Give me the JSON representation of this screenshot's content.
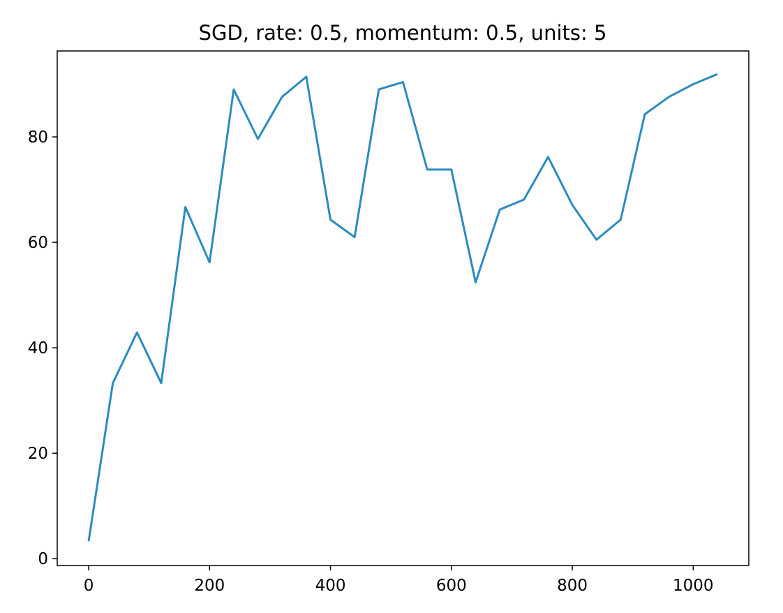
{
  "chart_data": {
    "type": "line",
    "title": "SGD, rate: 0.5, momentum: 0.5, units: 5",
    "xlabel": "",
    "ylabel": "",
    "x": [
      0,
      40,
      80,
      120,
      160,
      200,
      240,
      280,
      320,
      360,
      400,
      440,
      480,
      520,
      560,
      600,
      640,
      680,
      720,
      760,
      800,
      840,
      880,
      920,
      960,
      1000,
      1040
    ],
    "series": [
      {
        "values": [
          3.3,
          33.3,
          42.9,
          33.3,
          66.7,
          56.2,
          89.0,
          79.6,
          87.6,
          91.4,
          64.3,
          61.0,
          89.0,
          90.4,
          73.8,
          73.8,
          52.4,
          66.2,
          68.1,
          76.2,
          67.1,
          60.5,
          64.3,
          84.3,
          87.6,
          90.0,
          91.9
        ],
        "color": "#2b8bbf"
      }
    ],
    "xlim": [
      -52,
      1092
    ],
    "ylim": [
      -1.3,
      96.3
    ],
    "xticks": [
      0,
      200,
      400,
      600,
      800,
      1000
    ],
    "yticks": [
      0,
      20,
      40,
      60,
      80
    ],
    "xtick_labels": [
      "0",
      "200",
      "400",
      "600",
      "800",
      "1000"
    ],
    "ytick_labels": [
      "0",
      "20",
      "40",
      "60",
      "80"
    ],
    "grid": false,
    "legend": false
  }
}
